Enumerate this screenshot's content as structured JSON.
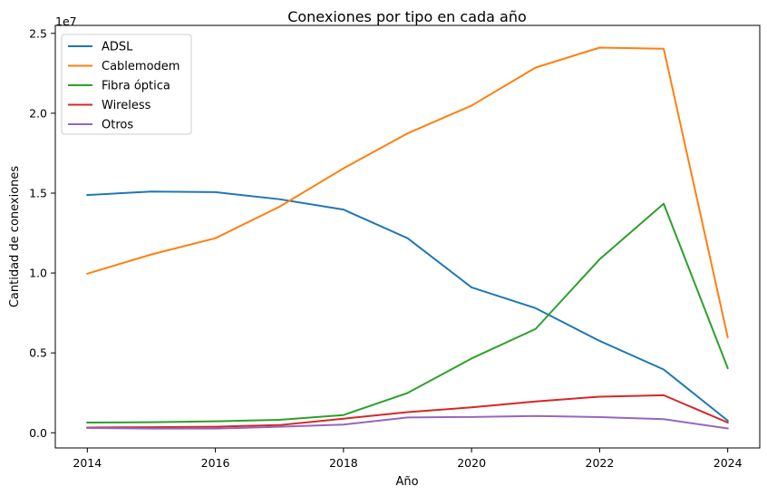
{
  "chart_data": {
    "type": "line",
    "title": "Conexiones por tipo en cada año",
    "xlabel": "Año",
    "ylabel": "Cantidad de conexiones",
    "y_offset_label": "1e7",
    "y_scale": 10000000,
    "x": [
      2014,
      2015,
      2016,
      2017,
      2018,
      2019,
      2020,
      2021,
      2022,
      2023,
      2024
    ],
    "xlim": [
      2013.5,
      2024.5
    ],
    "ylim": [
      -950000,
      25500000
    ],
    "x_ticks": [
      2014,
      2016,
      2018,
      2020,
      2022,
      2024
    ],
    "x_tick_labels": [
      "2014",
      "2016",
      "2018",
      "2020",
      "2022",
      "2024"
    ],
    "y_ticks": [
      0,
      5000000,
      10000000,
      15000000,
      20000000,
      25000000
    ],
    "y_tick_labels": [
      "0.0",
      "0.5",
      "1.0",
      "1.5",
      "2.0",
      "2.5"
    ],
    "grid": false,
    "legend_position": "upper-left",
    "series": [
      {
        "name": "ADSL",
        "color": "#1f77b4",
        "values": [
          14880000,
          15100000,
          15060000,
          14620000,
          13970000,
          12180000,
          9100000,
          7800000,
          5750000,
          3960000,
          760000
        ]
      },
      {
        "name": "Cablemodem",
        "color": "#ff7f0e",
        "values": [
          9960000,
          11160000,
          12180000,
          14150000,
          16550000,
          18740000,
          20480000,
          22860000,
          24110000,
          24040000,
          5980000
        ]
      },
      {
        "name": "Fibra óptica",
        "color": "#2ca02c",
        "values": [
          640000,
          660000,
          720000,
          810000,
          1110000,
          2490000,
          4650000,
          6500000,
          10860000,
          14340000,
          4050000
        ]
      },
      {
        "name": "Wireless",
        "color": "#d62728",
        "values": [
          330000,
          350000,
          380000,
          480000,
          880000,
          1290000,
          1590000,
          1960000,
          2260000,
          2350000,
          640000
        ]
      },
      {
        "name": "Otros",
        "color": "#9467bd",
        "values": [
          300000,
          260000,
          260000,
          380000,
          510000,
          960000,
          990000,
          1050000,
          980000,
          850000,
          270000
        ]
      }
    ]
  }
}
